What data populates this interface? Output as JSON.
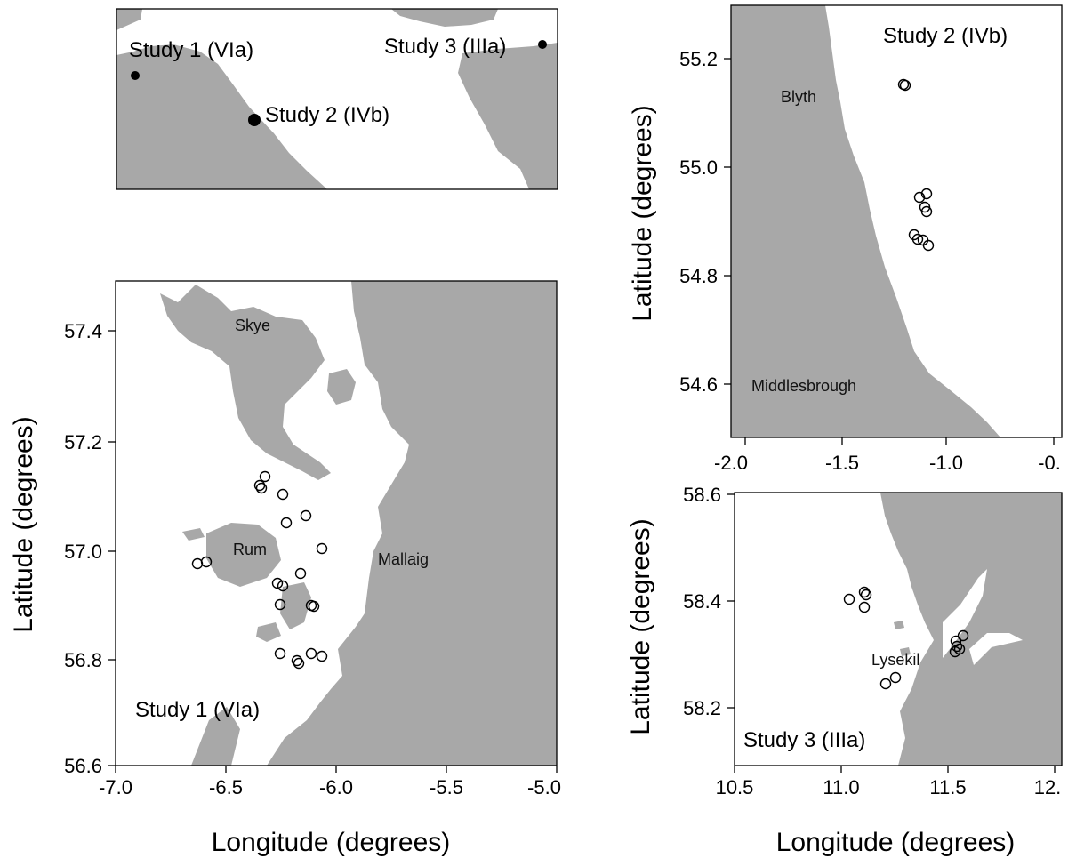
{
  "overview": {
    "sites": [
      {
        "label": "Study 1 (VIa)"
      },
      {
        "label": "Study 2 (IVb)"
      },
      {
        "label": "Study 3 (IIIa)"
      }
    ]
  },
  "panel1": {
    "study_label": "Study 1 (VIa)",
    "ylabel": "Latitude (degrees)",
    "xlabel": "Longitude (degrees)",
    "xticks": [
      "-7.0",
      "-6.5",
      "-6.0",
      "-5.5",
      "-5.0"
    ],
    "yticks": [
      "57.4",
      "57.2",
      "57.0",
      "56.8",
      "56.6"
    ],
    "places": [
      "Skye",
      "Rum",
      "Mallaig"
    ]
  },
  "panel2": {
    "study_label": "Study 2 (IVb)",
    "ylabel": "Latitude (degrees)",
    "xticks": [
      "-2.0",
      "-1.5",
      "-1.0",
      "-0."
    ],
    "yticks": [
      "55.2",
      "55.0",
      "54.8",
      "54.6"
    ],
    "places": [
      "Blyth",
      "Middlesbrough"
    ]
  },
  "panel3": {
    "study_label": "Study 3 (IIIa)",
    "ylabel": "Latitude (degrees)",
    "xlabel": "Longitude (degrees)",
    "xticks": [
      "10.5",
      "11.0",
      "11.5",
      "12."
    ],
    "yticks": [
      "58.6",
      "58.4",
      "58.2"
    ],
    "places": [
      "Lysekil"
    ]
  },
  "colors": {
    "land": "#a8a8a8",
    "sea": "#ffffff"
  }
}
